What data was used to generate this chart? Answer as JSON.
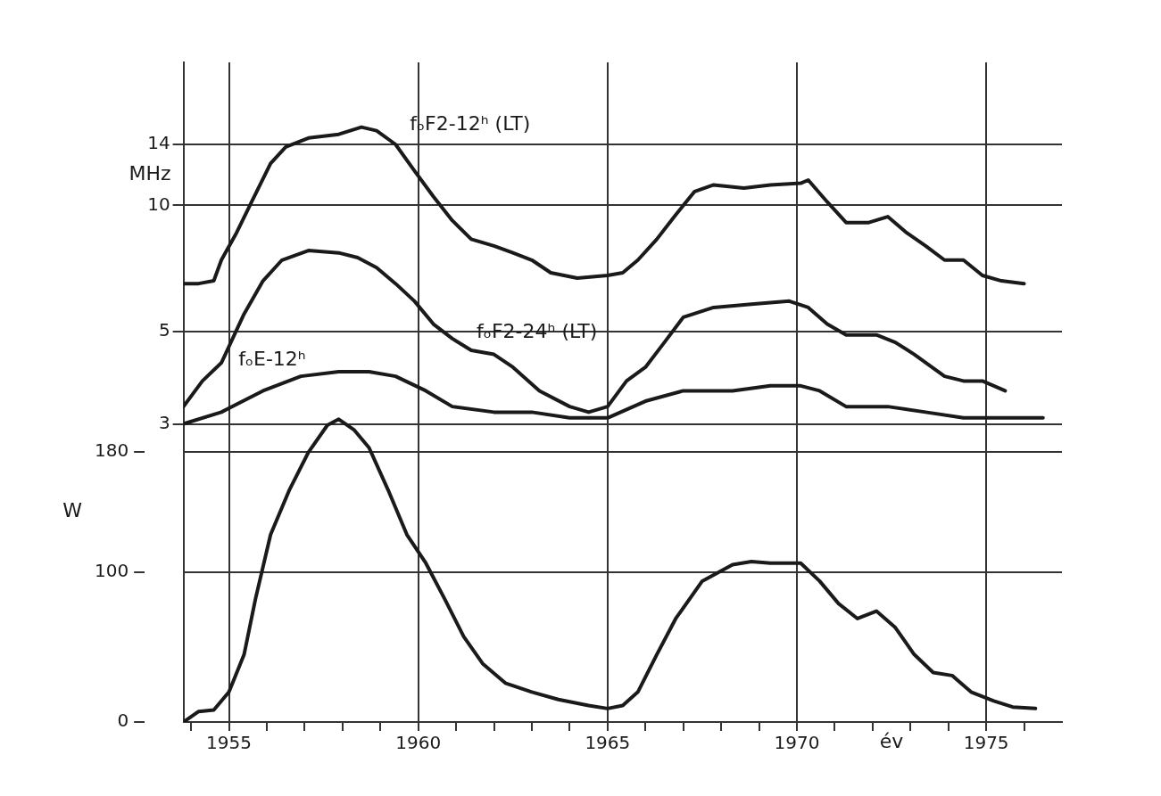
{
  "chart_data": {
    "type": "line",
    "xlabel": "év",
    "ylabel": "MHz",
    "y2label": "W",
    "xlim": [
      1953.8,
      1977
    ],
    "xticks": [
      {
        "value": 1954,
        "label": null
      },
      1955,
      {
        "value": 1956,
        "label": null
      },
      {
        "value": 1957,
        "label": null
      },
      {
        "value": 1958,
        "label": null
      },
      {
        "value": 1959,
        "label": null
      },
      1960,
      {
        "value": 1961,
        "label": null
      },
      {
        "value": 1962,
        "label": null
      },
      {
        "value": 1963,
        "label": null
      },
      {
        "value": 1964,
        "label": null
      },
      1965,
      {
        "value": 1966,
        "label": null
      },
      {
        "value": 1967,
        "label": null
      },
      {
        "value": 1968,
        "label": null
      },
      {
        "value": 1969,
        "label": null
      },
      1970,
      {
        "value": 1971,
        "label": null
      },
      {
        "value": 1972,
        "label": null
      },
      {
        "value": 1973,
        "label": null
      },
      {
        "value": 1974,
        "label": null
      },
      1975,
      {
        "value": 1976,
        "label": null
      }
    ],
    "log": "y",
    "ylim": [
      0.58,
      22
    ],
    "yticks": [
      3,
      5,
      10,
      14
    ],
    "y2lim": [
      0,
      440
    ],
    "y2ticks": [
      0,
      100,
      180
    ],
    "grid": true,
    "marker": "none",
    "line_style": "solid",
    "series": [
      {
        "name": "fₒF2-12ʰ (LT)",
        "color": "#1a1a1a",
        "x": [
          1953.8,
          1954.2,
          1954.6,
          1954.8,
          1955.2,
          1955.6,
          1956.1,
          1956.5,
          1957.1,
          1957.9,
          1958.5,
          1958.9,
          1959.4,
          1959.9,
          1960.4,
          1960.9,
          1961.4,
          1962.0,
          1962.5,
          1963.0,
          1963.5,
          1964.2,
          1965.0,
          1965.4,
          1965.8,
          1966.3,
          1966.8,
          1967.3,
          1967.8,
          1968.6,
          1969.3,
          1970.1,
          1970.3,
          1970.8,
          1971.3,
          1971.9,
          1972.4,
          1972.9,
          1973.4,
          1973.9,
          1974.4,
          1974.9,
          1975.4,
          1976.0
        ],
        "values": [
          6.5,
          6.5,
          6.6,
          7.4,
          8.6,
          10.2,
          12.6,
          13.8,
          14.5,
          14.8,
          15.4,
          15.1,
          14.0,
          12.1,
          10.5,
          9.2,
          8.3,
          8.0,
          7.7,
          7.4,
          6.9,
          6.7,
          6.8,
          6.9,
          7.4,
          8.3,
          9.5,
          10.8,
          11.2,
          11.0,
          11.2,
          11.3,
          11.5,
          10.2,
          9.1,
          9.1,
          9.4,
          8.6,
          8.0,
          7.4,
          7.4,
          6.8,
          6.6,
          6.5
        ]
      },
      {
        "name": "fₒF2-24ʰ (LT)",
        "color": "#1a1a1a",
        "x": [
          1953.8,
          1954.3,
          1954.8,
          1955.4,
          1955.9,
          1956.4,
          1957.1,
          1957.9,
          1958.4,
          1958.9,
          1959.4,
          1959.9,
          1960.4,
          1960.9,
          1961.4,
          1962.0,
          1962.5,
          1963.2,
          1964.0,
          1964.5,
          1965.0,
          1965.5,
          1966.0,
          1966.5,
          1967.0,
          1967.8,
          1968.8,
          1969.8,
          1970.3,
          1970.8,
          1971.3,
          1972.1,
          1972.6,
          1973.1,
          1973.9,
          1974.4,
          1974.9,
          1975.5
        ],
        "values": [
          3.3,
          3.8,
          4.2,
          5.5,
          6.6,
          7.4,
          7.8,
          7.7,
          7.5,
          7.1,
          6.5,
          5.9,
          5.2,
          4.8,
          4.5,
          4.4,
          4.1,
          3.6,
          3.3,
          3.2,
          3.3,
          3.8,
          4.1,
          4.7,
          5.4,
          5.7,
          5.8,
          5.9,
          5.7,
          5.2,
          4.9,
          4.9,
          4.7,
          4.4,
          3.9,
          3.8,
          3.8,
          3.6
        ]
      },
      {
        "name": "fₒE-12ʰ",
        "color": "#1a1a1a",
        "x": [
          1953.8,
          1954.8,
          1955.9,
          1956.9,
          1957.9,
          1958.7,
          1959.4,
          1960.2,
          1960.9,
          1962.0,
          1963.0,
          1964.0,
          1965.0,
          1966.0,
          1967.0,
          1968.3,
          1969.3,
          1970.1,
          1970.6,
          1971.3,
          1972.4,
          1973.4,
          1974.4,
          1975.4,
          1976.5
        ],
        "values": [
          3.0,
          3.2,
          3.6,
          3.9,
          4.0,
          4.0,
          3.9,
          3.6,
          3.3,
          3.2,
          3.2,
          3.1,
          3.1,
          3.4,
          3.6,
          3.6,
          3.7,
          3.7,
          3.6,
          3.3,
          3.3,
          3.2,
          3.1,
          3.1,
          3.1
        ]
      },
      {
        "color": "#1a1a1a",
        "axis": "y2",
        "x": [
          1953.8,
          1954.2,
          1954.6,
          1955.0,
          1955.4,
          1955.7,
          1956.1,
          1956.6,
          1957.1,
          1957.6,
          1957.9,
          1958.3,
          1958.7,
          1959.2,
          1959.7,
          1960.2,
          1960.7,
          1961.2,
          1961.7,
          1962.3,
          1963.0,
          1963.7,
          1964.5,
          1965.0,
          1965.4,
          1965.8,
          1966.3,
          1966.8,
          1967.5,
          1968.3,
          1968.8,
          1969.3,
          1970.1,
          1970.6,
          1971.1,
          1971.6,
          1972.1,
          1972.6,
          1973.1,
          1973.6,
          1974.1,
          1974.6,
          1975.2,
          1975.7,
          1976.3
        ],
        "values": [
          0,
          7,
          8,
          20,
          45,
          82,
          125,
          155,
          180,
          198,
          202,
          195,
          183,
          155,
          125,
          106,
          82,
          57,
          39,
          26,
          20,
          15,
          11,
          9,
          11,
          20,
          45,
          69,
          94,
          105,
          107,
          106,
          106,
          94,
          79,
          69,
          74,
          63,
          45,
          33,
          31,
          20,
          14,
          10,
          9
        ]
      }
    ]
  }
}
